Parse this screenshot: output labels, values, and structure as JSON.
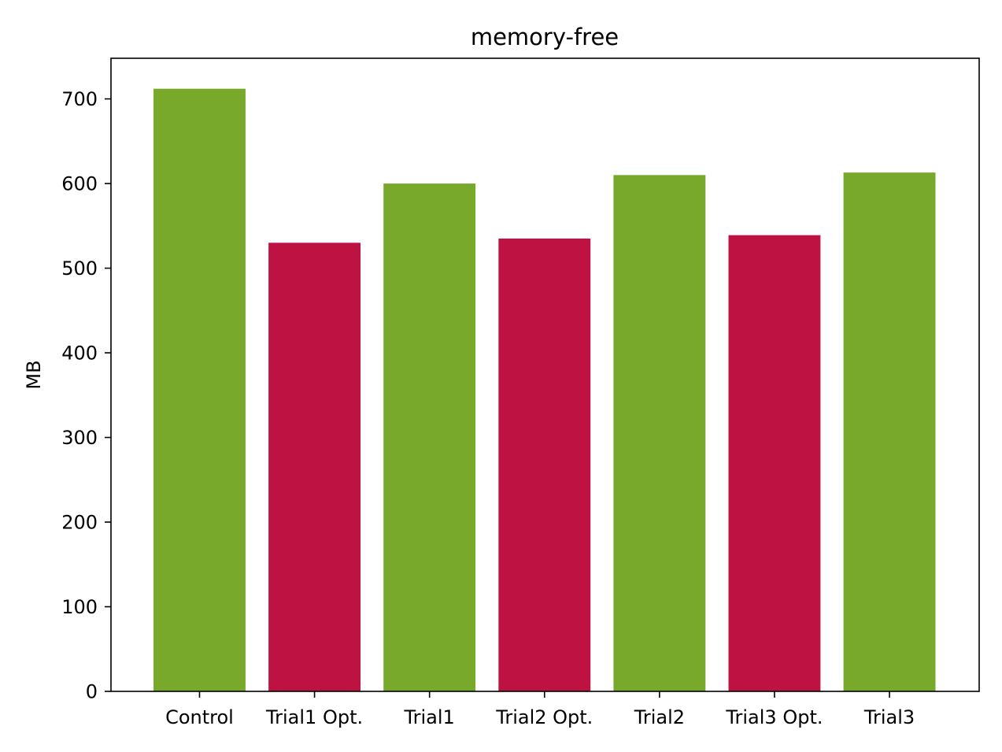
{
  "chart_data": {
    "type": "bar",
    "title": "memory-free",
    "xlabel": "",
    "ylabel": "MB",
    "categories": [
      "Control",
      "Trial1 Opt.",
      "Trial1",
      "Trial2 Opt.",
      "Trial2",
      "Trial3 Opt.",
      "Trial3"
    ],
    "values": [
      712,
      530,
      600,
      535,
      610,
      539,
      613
    ],
    "bar_colors": [
      "#78a92a",
      "#bd1242",
      "#78a92a",
      "#bd1242",
      "#78a92a",
      "#bd1242",
      "#78a92a"
    ],
    "ylim": [
      0,
      748
    ],
    "yticks": [
      0,
      100,
      200,
      300,
      400,
      500,
      600,
      700
    ],
    "grid": false,
    "legend": "none"
  }
}
